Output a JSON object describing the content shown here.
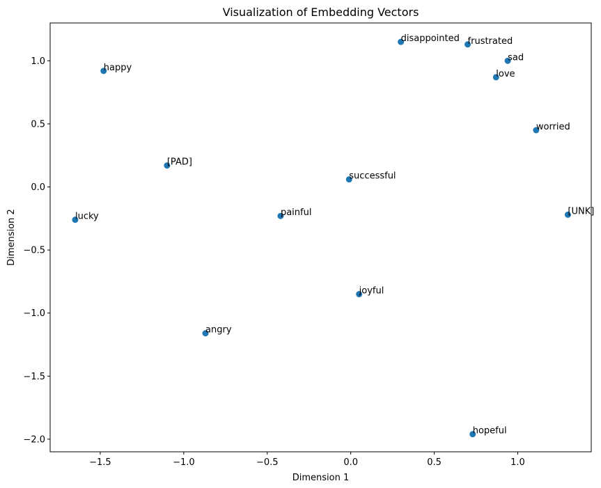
{
  "chart_data": {
    "type": "scatter",
    "title": "Visualization of Embedding Vectors",
    "xlabel": "Dimension 1",
    "ylabel": "Dimension 2",
    "xlim": [
      -1.8,
      1.44
    ],
    "ylim": [
      -2.1,
      1.3
    ],
    "xticks": [
      -1.5,
      -1.0,
      -0.5,
      0.0,
      0.5,
      1.0
    ],
    "xtick_labels": [
      "−1.5",
      "−1.0",
      "−0.5",
      "0.0",
      "0.5",
      "1.0"
    ],
    "yticks": [
      -2.0,
      -1.5,
      -1.0,
      -0.5,
      0.0,
      0.5,
      1.0
    ],
    "ytick_labels": [
      "−2.0",
      "−1.5",
      "−1.0",
      "−0.5",
      "0.0",
      "0.5",
      "1.0"
    ],
    "grid": false,
    "point_color": "#1f77b4",
    "points": [
      {
        "label": "happy",
        "x": -1.48,
        "y": 0.92
      },
      {
        "label": "[PAD]",
        "x": -1.1,
        "y": 0.17
      },
      {
        "label": "lucky",
        "x": -1.65,
        "y": -0.26
      },
      {
        "label": "painful",
        "x": -0.42,
        "y": -0.23
      },
      {
        "label": "successful",
        "x": -0.01,
        "y": 0.06
      },
      {
        "label": "disappointed",
        "x": 0.3,
        "y": 1.15
      },
      {
        "label": "frustrated",
        "x": 0.7,
        "y": 1.13
      },
      {
        "label": "sad",
        "x": 0.94,
        "y": 1.0
      },
      {
        "label": "love",
        "x": 0.87,
        "y": 0.87
      },
      {
        "label": "worried",
        "x": 1.11,
        "y": 0.45
      },
      {
        "label": "[UNK]",
        "x": 1.3,
        "y": -0.22
      },
      {
        "label": "joyful",
        "x": 0.05,
        "y": -0.85
      },
      {
        "label": "angry",
        "x": -0.87,
        "y": -1.16
      },
      {
        "label": "hopeful",
        "x": 0.73,
        "y": -1.96
      }
    ]
  }
}
